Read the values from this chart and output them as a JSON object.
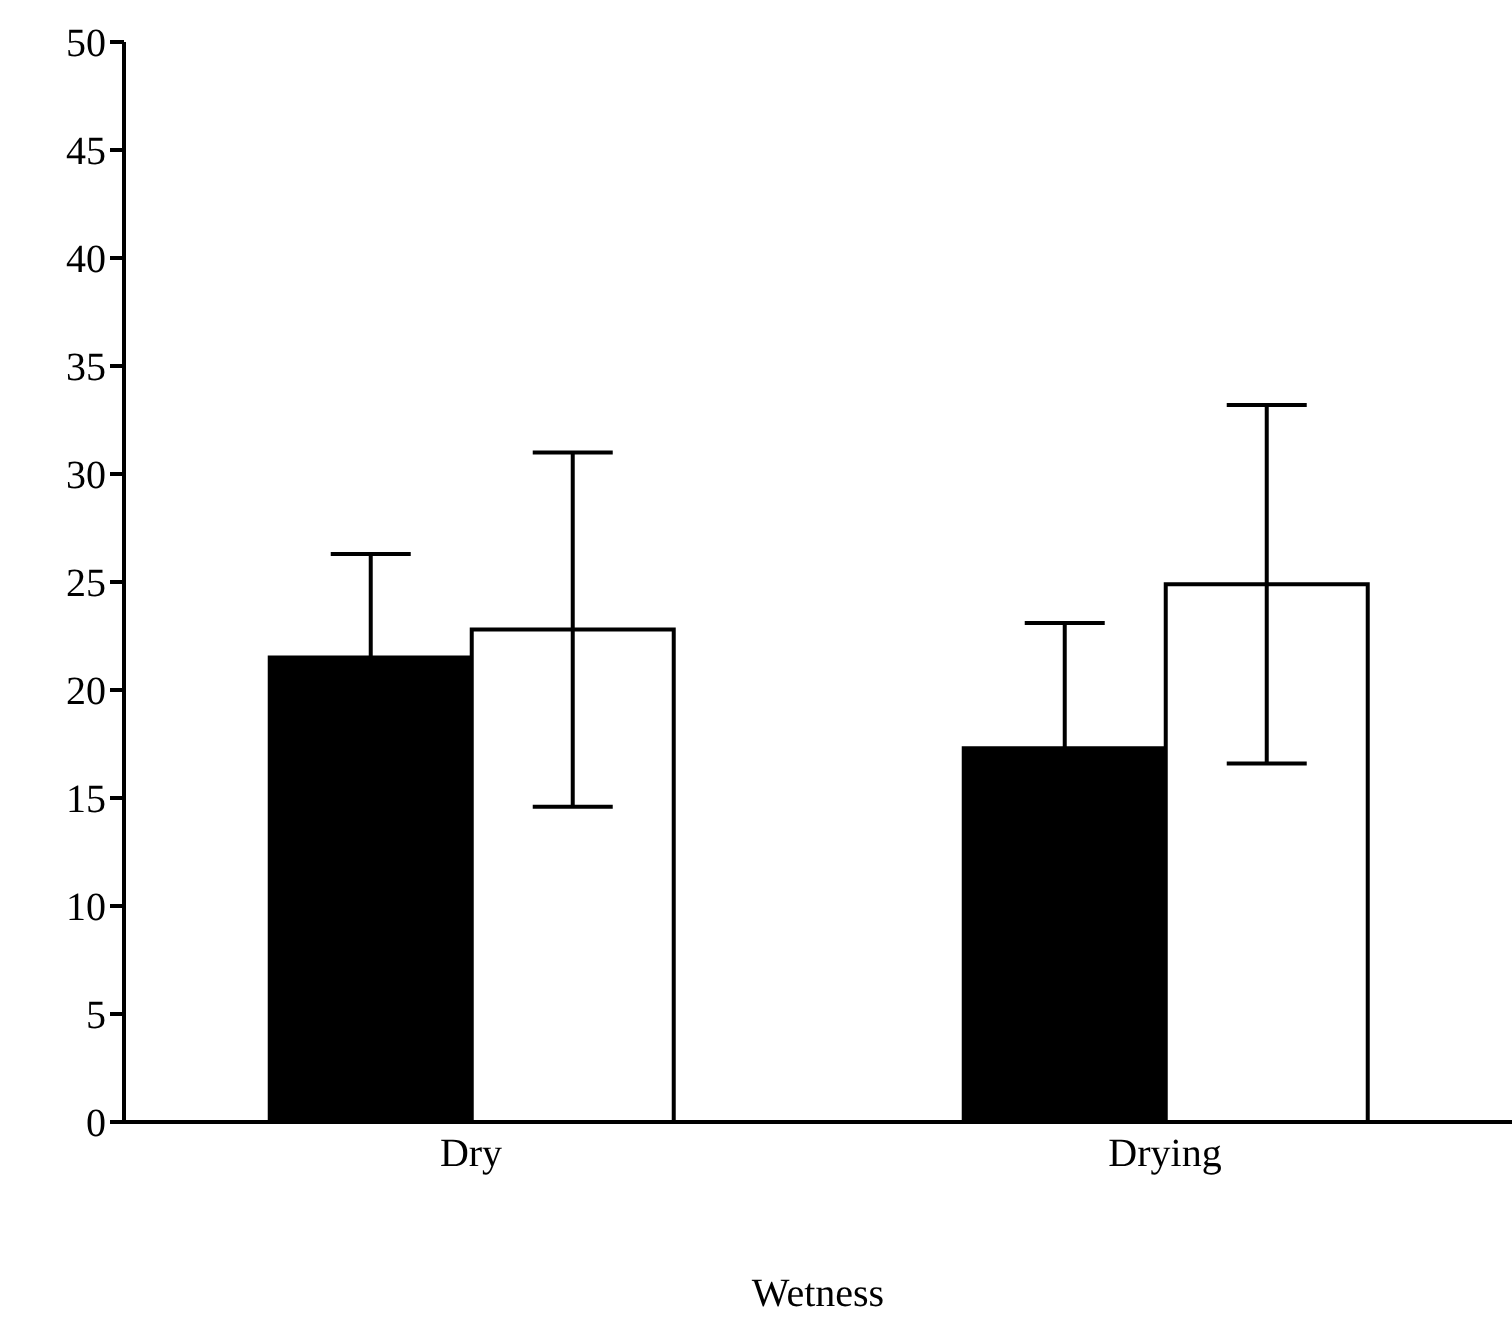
{
  "chart_data": {
    "type": "bar",
    "xlabel": "Wetness",
    "categories": [
      "Dry",
      "Drying"
    ],
    "series": [
      {
        "color": "#000000",
        "values": [
          21.5,
          17.3
        ],
        "errors": [
          4.8,
          5.8
        ]
      },
      {
        "color": "#ffffff",
        "values": [
          22.8,
          24.9
        ],
        "errors": [
          8.2,
          8.3
        ]
      }
    ],
    "ylim": [
      0,
      50
    ],
    "yticks": [
      0,
      5,
      10,
      15,
      20,
      25,
      30,
      35,
      40,
      45,
      50
    ],
    "grid": false,
    "legend": false
  }
}
